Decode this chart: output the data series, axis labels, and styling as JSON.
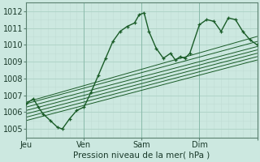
{
  "xlabel": "Pression niveau de la mer( hPa )",
  "bg_color": "#cce8e0",
  "grid_major_color": "#b0d4c8",
  "grid_minor_color": "#c0dcd4",
  "line_color": "#1a5c28",
  "ylim": [
    1004.5,
    1012.5
  ],
  "xlim": [
    0,
    96
  ],
  "yticks": [
    1005,
    1006,
    1007,
    1008,
    1009,
    1010,
    1011,
    1012
  ],
  "xtick_positions": [
    0,
    24,
    48,
    72,
    96
  ],
  "xtick_labels": [
    "Jeu",
    "Ven",
    "Sam",
    "Dim",
    ""
  ],
  "main_line": [
    [
      0,
      1006.5
    ],
    [
      3,
      1006.8
    ],
    [
      5,
      1006.3
    ],
    [
      7,
      1005.9
    ],
    [
      10,
      1005.5
    ],
    [
      13,
      1005.1
    ],
    [
      15,
      1005.0
    ],
    [
      18,
      1005.6
    ],
    [
      21,
      1006.1
    ],
    [
      24,
      1006.3
    ],
    [
      27,
      1007.2
    ],
    [
      30,
      1008.2
    ],
    [
      33,
      1009.2
    ],
    [
      36,
      1010.2
    ],
    [
      39,
      1010.8
    ],
    [
      42,
      1011.1
    ],
    [
      45,
      1011.3
    ],
    [
      47,
      1011.8
    ],
    [
      49,
      1011.9
    ],
    [
      51,
      1010.8
    ],
    [
      54,
      1009.8
    ],
    [
      57,
      1009.2
    ],
    [
      60,
      1009.5
    ],
    [
      62,
      1009.1
    ],
    [
      64,
      1009.3
    ],
    [
      66,
      1009.2
    ],
    [
      68,
      1009.5
    ],
    [
      72,
      1011.2
    ],
    [
      75,
      1011.5
    ],
    [
      78,
      1011.4
    ],
    [
      81,
      1010.8
    ],
    [
      84,
      1011.6
    ],
    [
      87,
      1011.5
    ],
    [
      90,
      1010.8
    ],
    [
      93,
      1010.3
    ],
    [
      96,
      1010.0
    ]
  ],
  "trend_lines": [
    [
      [
        0,
        1006.5
      ],
      [
        96,
        1010.2
      ]
    ],
    [
      [
        0,
        1006.3
      ],
      [
        96,
        1009.9
      ]
    ],
    [
      [
        0,
        1006.1
      ],
      [
        96,
        1009.7
      ]
    ],
    [
      [
        0,
        1005.9
      ],
      [
        96,
        1009.5
      ]
    ],
    [
      [
        0,
        1005.7
      ],
      [
        96,
        1009.3
      ]
    ],
    [
      [
        0,
        1005.5
      ],
      [
        96,
        1009.1
      ]
    ],
    [
      [
        0,
        1006.6
      ],
      [
        96,
        1010.5
      ]
    ]
  ],
  "xlabel_fontsize": 7.5,
  "tick_fontsize": 7
}
